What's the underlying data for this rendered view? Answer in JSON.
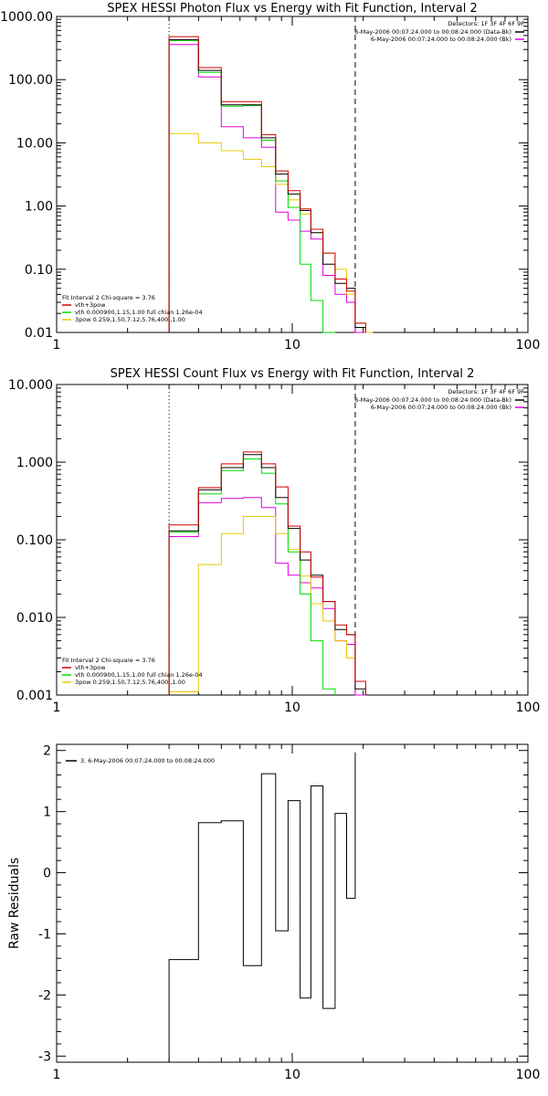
{
  "chart_data": [
    {
      "type": "line",
      "step": true,
      "title": "SPEX HESSI Photon Flux vs Energy with Fit Function, Interval 2",
      "xscale": "log",
      "yscale": "log",
      "xlim": [
        1,
        100
      ],
      "ylim": [
        0.01,
        1000
      ],
      "xticks": [
        "1",
        "10",
        "100"
      ],
      "yticks": [
        "0.01",
        "0.10",
        "1.00",
        "10.00",
        "100.00",
        "1000.00"
      ],
      "edges": [
        3,
        4,
        5,
        6.2,
        7.4,
        8.5,
        9.6,
        10.8,
        12,
        13.5,
        15.2,
        17,
        18.5,
        20.5,
        22
      ],
      "series": [
        {
          "name": "vth+3pow",
          "color": "#d00000",
          "values": [
            480,
            155,
            45,
            45,
            13.5,
            3.6,
            1.75,
            0.9,
            0.43,
            0.18,
            0.07,
            0.045,
            0.014,
            null
          ]
        },
        {
          "name": "data",
          "color": "#000000",
          "values": [
            430,
            140,
            40,
            40,
            12,
            3.2,
            1.55,
            0.85,
            0.38,
            0.12,
            0.06,
            0.05,
            0.012,
            null
          ]
        },
        {
          "name": "vth 0.000900,1.15,1.00 full chian 1.26e-04",
          "color": "#00dd00",
          "values": [
            415,
            130,
            38,
            39,
            11,
            2.5,
            0.95,
            0.12,
            0.032,
            0.0085,
            null,
            null,
            null,
            null
          ]
        },
        {
          "name": "3pow 0.259,1.50,7.12,5.76,400.,1.00",
          "color": "#e8c800",
          "values": [
            14,
            10,
            7.5,
            5.5,
            4.2,
            2.2,
            1.25,
            0.75,
            0.38,
            0.18,
            0.1,
            0.04,
            0.014,
            0.01
          ]
        },
        {
          "name": "background",
          "color": "#e000e0",
          "values": [
            360,
            110,
            18,
            12,
            8.5,
            0.8,
            0.6,
            0.4,
            0.3,
            0.08,
            0.04,
            0.03,
            0.01,
            null
          ]
        }
      ],
      "vlines": [
        {
          "x": 3,
          "style": "dotted"
        },
        {
          "x": 18.5,
          "style": "dashed"
        }
      ],
      "legend_top": {
        "header": "Detectors: 1F 3F 4F 6F 9F",
        "items": [
          {
            "text": "6-May-2006 00:07:24.000 to 00:08:24.000 (Data-Bk)",
            "color": "#000000"
          },
          {
            "text": "6-May-2006 00:07:24.000 to 00:08:24.000 (Bk)",
            "color": "#e000e0"
          }
        ]
      },
      "legend_bottom": {
        "header": "Fit Interval 2   Chi-square = 3.76",
        "items": [
          {
            "text": "vth+3pow",
            "color": "#d00000"
          },
          {
            "text": "vth 0.000900,1.15,1.00  full chian 1.26e-04",
            "color": "#00dd00"
          },
          {
            "text": "3pow 0.259,1.50,7.12,5.76,400.,1.00",
            "color": "#e8c800"
          }
        ]
      }
    },
    {
      "type": "line",
      "step": true,
      "title": "SPEX HESSI Count Flux vs Energy with Fit Function, Interval 2",
      "xscale": "log",
      "yscale": "log",
      "xlim": [
        1,
        100
      ],
      "ylim": [
        0.001,
        10
      ],
      "xticks": [
        "1",
        "10",
        "100"
      ],
      "yticks": [
        "0.001",
        "0.010",
        "0.100",
        "1.000",
        "10.000"
      ],
      "edges": [
        3,
        4,
        5,
        6.2,
        7.4,
        8.5,
        9.6,
        10.8,
        12,
        13.5,
        15.2,
        17,
        18.5,
        20.5,
        22
      ],
      "series": [
        {
          "name": "vth+3pow",
          "color": "#d00000",
          "values": [
            0.155,
            0.47,
            0.95,
            1.35,
            0.95,
            0.48,
            0.15,
            0.07,
            0.033,
            0.016,
            0.008,
            0.006,
            0.0015,
            null
          ]
        },
        {
          "name": "data",
          "color": "#000000",
          "values": [
            0.13,
            0.44,
            0.85,
            1.25,
            0.85,
            0.35,
            0.14,
            0.055,
            0.035,
            0.016,
            0.007,
            0.006,
            0.0012,
            null
          ]
        },
        {
          "name": "vth 0.000900,1.15,1.00 full chian 1.26e-04",
          "color": "#00dd00",
          "values": [
            0.125,
            0.39,
            0.78,
            1.1,
            0.72,
            0.29,
            0.07,
            0.02,
            0.005,
            0.0012,
            null,
            null,
            null,
            null
          ]
        },
        {
          "name": "3pow 0.259,1.50,7.12,5.76,400.,1.00",
          "color": "#e8c800",
          "values": [
            0.0011,
            0.048,
            0.12,
            0.2,
            0.2,
            0.12,
            0.075,
            0.034,
            0.015,
            0.009,
            0.005,
            0.003,
            0.0015,
            null
          ]
        },
        {
          "name": "background",
          "color": "#e000e0",
          "values": [
            0.11,
            0.3,
            0.34,
            0.35,
            0.26,
            0.05,
            0.035,
            0.028,
            0.024,
            0.013,
            0.005,
            0.0045,
            0.001,
            null
          ]
        }
      ],
      "vlines": [
        {
          "x": 3,
          "style": "dotted"
        },
        {
          "x": 18.5,
          "style": "dashed"
        }
      ],
      "legend_top": {
        "header": "Detectors: 1F 3F 4F 6F 9F",
        "items": [
          {
            "text": "6-May-2006 00:07:24.000 to 00:08:24.000 (Data-Bk)",
            "color": "#000000"
          },
          {
            "text": "6-May-2006 00:07:24.000 to 00:08:24.000 (Bk)",
            "color": "#e000e0"
          }
        ]
      },
      "legend_bottom": {
        "header": "Fit Interval 2   Chi-square = 3.76",
        "items": [
          {
            "text": "vth+3pow",
            "color": "#d00000"
          },
          {
            "text": "vth 0.000900,1.15,1.00  full chian 1.26e-04",
            "color": "#00dd00"
          },
          {
            "text": "3pow 0.259,1.50,7.12,5.76,400.,1.00",
            "color": "#e8c800"
          }
        ]
      }
    },
    {
      "type": "line",
      "step": true,
      "title": "",
      "xscale": "log",
      "yscale": "linear",
      "xlim": [
        1,
        100
      ],
      "ylim": [
        -3.1,
        2.1
      ],
      "xticks": [
        "1",
        "10",
        "100"
      ],
      "yticks": [
        "-3",
        "-2",
        "-1",
        "0",
        "1",
        "2"
      ],
      "ylabel": "Raw Residuals",
      "edges": [
        3,
        4,
        5,
        6.2,
        7.4,
        8.5,
        9.6,
        10.8,
        12,
        13.5,
        15.2,
        17,
        18.5
      ],
      "series": [
        {
          "name": "",
          "color": "#000000",
          "values": [
            -1.42,
            0.82,
            0.85,
            -1.52,
            1.62,
            -0.95,
            1.18,
            -2.05,
            1.42,
            -2.22,
            0.97,
            -0.42,
            1.97
          ]
        }
      ],
      "legend_top_left": {
        "text": "3. 6-May-2006 00:07:24.000 to 00:08:24.000",
        "color": "#000000"
      }
    }
  ]
}
